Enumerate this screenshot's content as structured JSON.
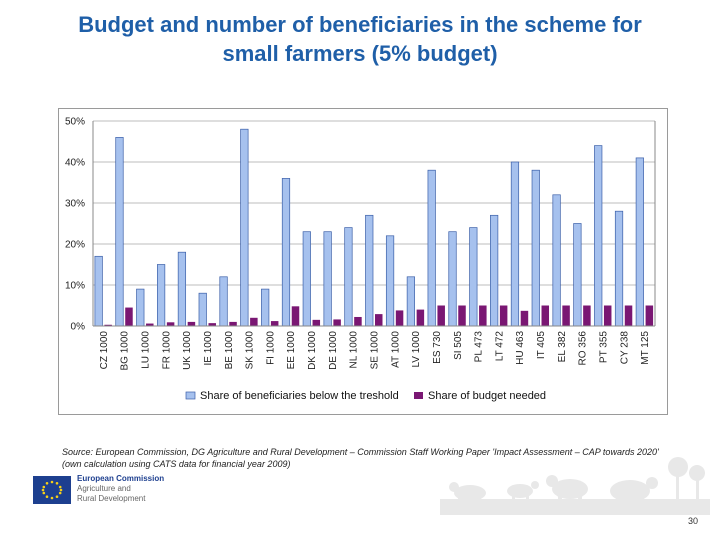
{
  "header": {
    "title_line1": "Budget and number of beneficiaries in the scheme for",
    "title_line2": "small farmers (5% budget)"
  },
  "chart_data": {
    "type": "bar",
    "categories": [
      "CZ 1000",
      "BG 1000",
      "LU 1000",
      "FR 1000",
      "UK 1000",
      "IE 1000",
      "BE 1000",
      "SK 1000",
      "FI 1000",
      "EE 1000",
      "DK 1000",
      "DE 1000",
      "NL 1000",
      "SE 1000",
      "AT 1000",
      "LV 1000",
      "ES 730",
      "SI 505",
      "PL 473",
      "LT 472",
      "HU 463",
      "IT 405",
      "EL 382",
      "RO 356",
      "PT 355",
      "CY 238",
      "MT 125"
    ],
    "series": [
      {
        "name": "Share of beneficiaries below the treshold",
        "color": "#a6c1ee",
        "values": [
          17,
          46,
          9,
          15,
          18,
          8,
          12,
          48,
          9,
          36,
          23,
          23,
          24,
          27,
          22,
          12,
          38,
          23,
          24,
          27,
          40,
          38,
          32,
          25,
          44,
          28,
          41
        ]
      },
      {
        "name": "Share of budget needed",
        "color": "#7a1773",
        "values": [
          0.3,
          4.5,
          0.6,
          0.9,
          1.0,
          0.7,
          1.0,
          2.0,
          1.2,
          4.8,
          1.5,
          1.6,
          2.2,
          2.9,
          3.8,
          4.0,
          5.0,
          5.0,
          5.0,
          5.0,
          3.7,
          5.0,
          5.0,
          5.0,
          5.0,
          5.0,
          5.0
        ]
      }
    ],
    "ylim": [
      0,
      50
    ],
    "ytick_labels": [
      "0%",
      "10%",
      "20%",
      "30%",
      "40%",
      "50%"
    ],
    "grid": "horizontal",
    "legend_position": "bottom"
  },
  "footer": {
    "source_line1": "Source: European Commission, DG Agriculture and Rural Development – Commission Staff Working Paper 'Impact Assessment – CAP towards 2020'",
    "source_line2": "(own calculation using CATS data for financial year 2009)",
    "logo_line1": "European Commission",
    "logo_line2": "Agriculture and",
    "logo_line3": "Rural Development",
    "page_number": "30"
  }
}
